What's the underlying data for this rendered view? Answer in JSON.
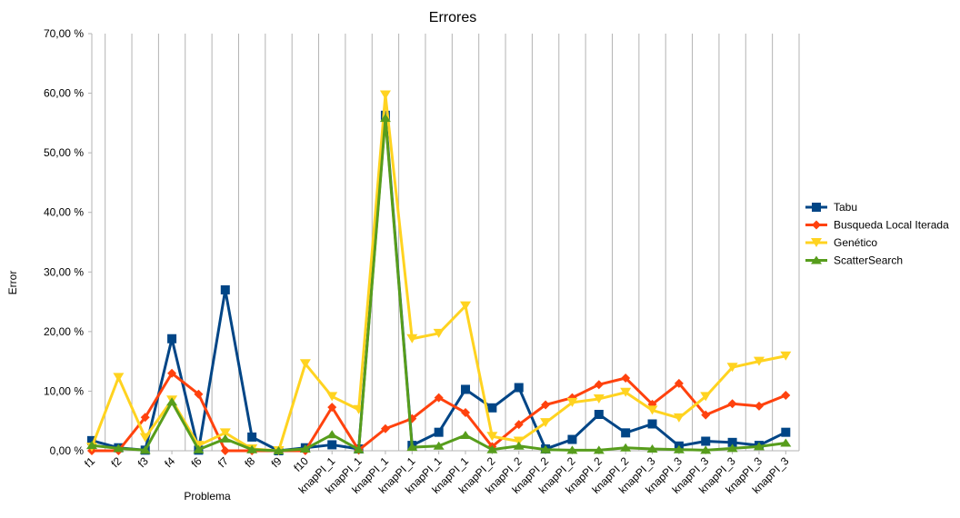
{
  "chart_data": {
    "type": "line",
    "title": "Errores",
    "xlabel": "Problema",
    "ylabel": "Error",
    "ylim": [
      0,
      70
    ],
    "y_ticks": [
      "0,00 %",
      "10,00 %",
      "20,00 %",
      "30,00 %",
      "40,00 %",
      "50,00 %",
      "60,00 %",
      "70,00 %"
    ],
    "categories": [
      "f1",
      "f2",
      "f3",
      "f4",
      "f6",
      "f7",
      "f8",
      "f9",
      "f10",
      "knapPI_1",
      "knapPI_1",
      "knapPI_1",
      "knapPI_1",
      "knapPI_1",
      "knapPI_1",
      "knapPI_2",
      "knapPI_2",
      "knapPI_2",
      "knapPI_2",
      "knapPI_2",
      "knapPI_2",
      "knapPI_3",
      "knapPI_3",
      "knapPI_3",
      "knapPI_3",
      "knapPI_3",
      "knapPI_3"
    ],
    "grid": "vertical",
    "legend": "right",
    "series": [
      {
        "name": "Tabu",
        "color": "#004586",
        "marker": "square",
        "values": [
          1.7,
          0.5,
          0.1,
          18.8,
          0.1,
          27.0,
          2.3,
          0.0,
          0.5,
          1.0,
          0.3,
          56.3,
          0.9,
          3.1,
          10.3,
          7.2,
          10.6,
          0.3,
          1.9,
          6.1,
          3.0,
          4.5,
          0.8,
          1.6,
          1.4,
          0.9,
          3.1
        ]
      },
      {
        "name": "Busqueda Local Iterada",
        "color": "#ff420e",
        "marker": "diamond",
        "values": [
          0.0,
          0.0,
          5.6,
          13.0,
          9.5,
          0.0,
          0.0,
          0.0,
          0.0,
          7.3,
          0.1,
          3.7,
          5.4,
          8.9,
          6.4,
          0.7,
          4.4,
          7.7,
          8.9,
          11.1,
          12.2,
          7.8,
          11.3,
          6.0,
          7.9,
          7.5,
          9.3
        ]
      },
      {
        "name": "Genético",
        "color": "#ffd320",
        "marker": "triangle-down",
        "values": [
          0.6,
          12.3,
          2.2,
          8.5,
          0.9,
          3.0,
          0.3,
          0.0,
          14.6,
          9.1,
          6.9,
          59.7,
          18.8,
          19.7,
          24.3,
          2.4,
          1.6,
          4.7,
          8.1,
          8.7,
          9.8,
          6.8,
          5.5,
          9.1,
          14.0,
          15.0,
          15.9
        ]
      },
      {
        "name": "ScatterSearch",
        "color": "#579d1c",
        "marker": "triangle-up",
        "values": [
          0.9,
          0.4,
          0.1,
          8.2,
          0.2,
          2.0,
          0.2,
          0.0,
          0.3,
          2.7,
          0.2,
          55.8,
          0.6,
          0.8,
          2.6,
          0.2,
          0.8,
          0.2,
          0.1,
          0.1,
          0.5,
          0.3,
          0.2,
          0.1,
          0.4,
          0.7,
          1.3
        ]
      }
    ]
  }
}
